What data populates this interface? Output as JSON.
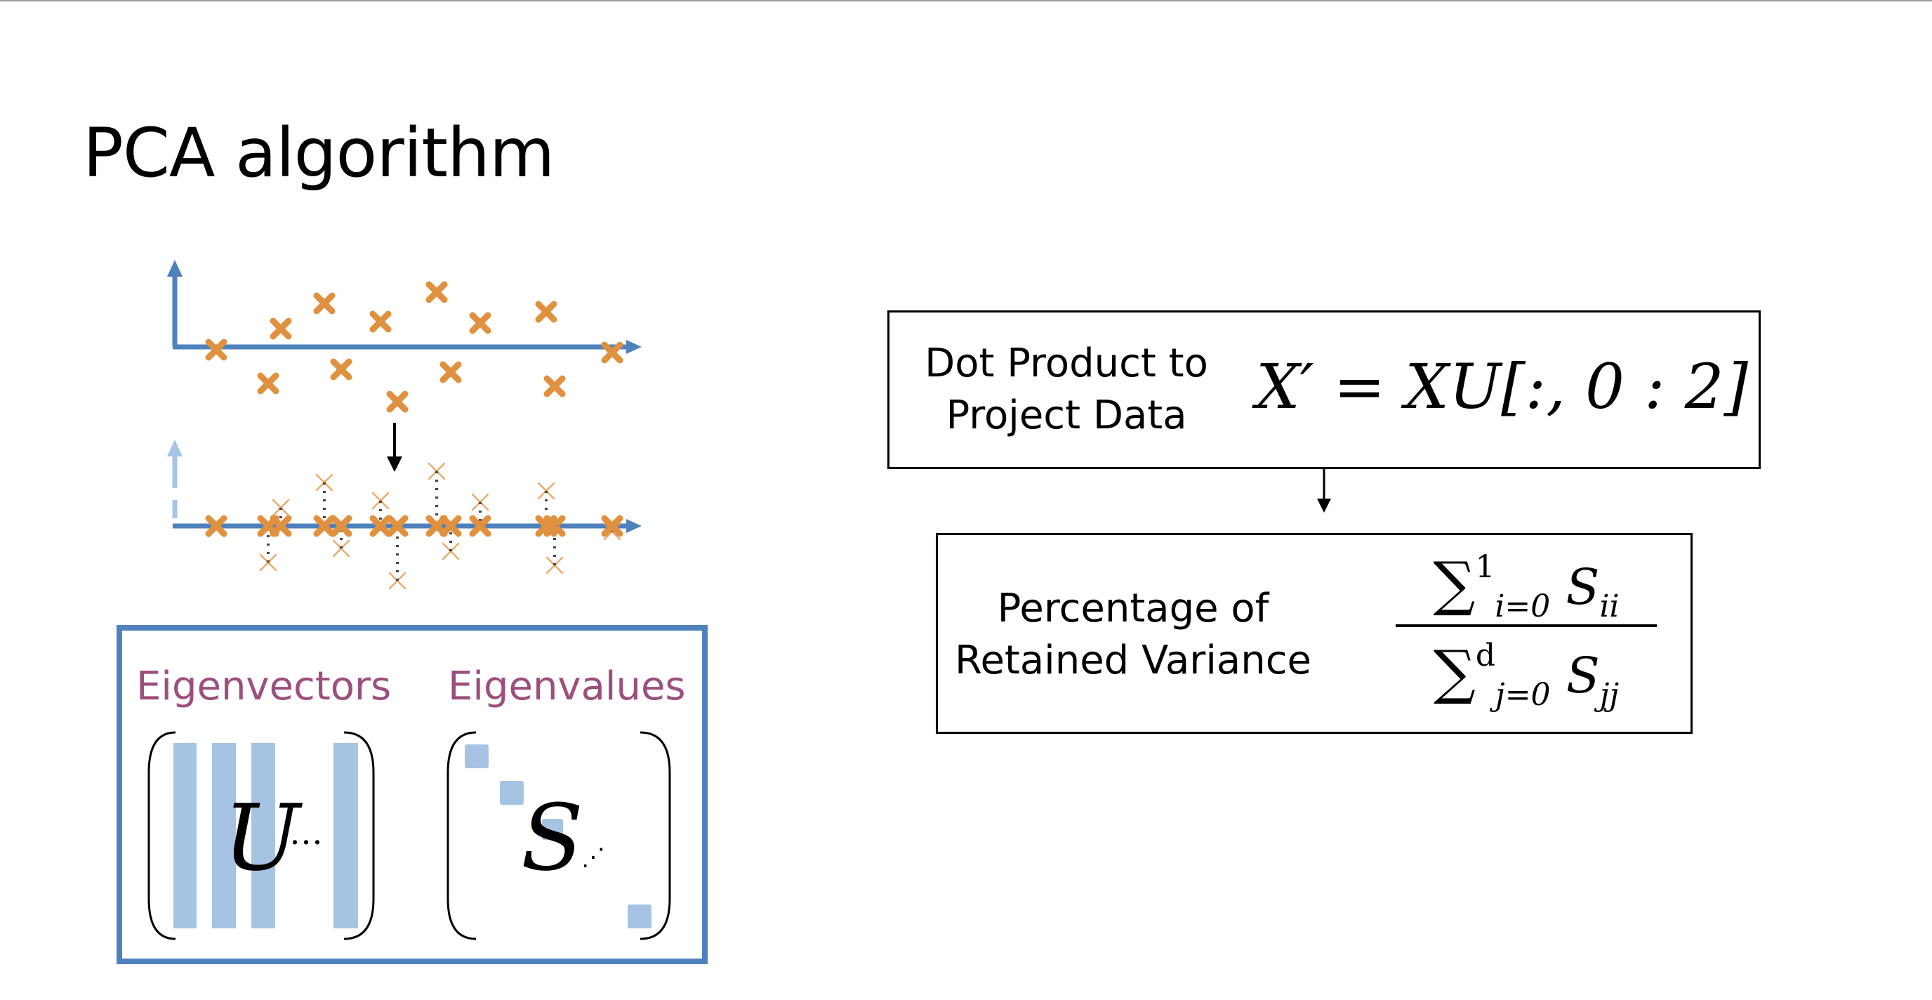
{
  "slide": {
    "title": "PCA algorithm"
  },
  "eigen_panel": {
    "eigenvectors_label": "Eigenvectors",
    "eigenvalues_label": "Eigenvalues",
    "u_symbol": "U",
    "u_ellipsis": "…",
    "s_symbol": "S",
    "s_ellipsis": "⋰"
  },
  "projection_box": {
    "label_line1": "Dot Product to",
    "label_line2": "Project Data",
    "formula": "X′ = XU[:, 0 : 2]"
  },
  "variance_box": {
    "label_line1": "Percentage of",
    "label_line2": "Retained Variance",
    "numerator_sum": "∑",
    "numerator_upper": "1",
    "numerator_lower": "i=0",
    "numerator_term": "S",
    "numerator_sub": "ii",
    "denominator_sum": "∑",
    "denominator_upper": "d",
    "denominator_lower": "j=0",
    "denominator_term": "S",
    "denominator_sub": "jj"
  },
  "colors": {
    "axis_blue": "#4f81bd",
    "axis_blue_faded": "#a8c4e6",
    "point_orange": "#e0913f",
    "bar_blue": "#a7c3e3",
    "eigen_label": "#9c4f7c",
    "panel_border": "#4f81bd"
  }
}
